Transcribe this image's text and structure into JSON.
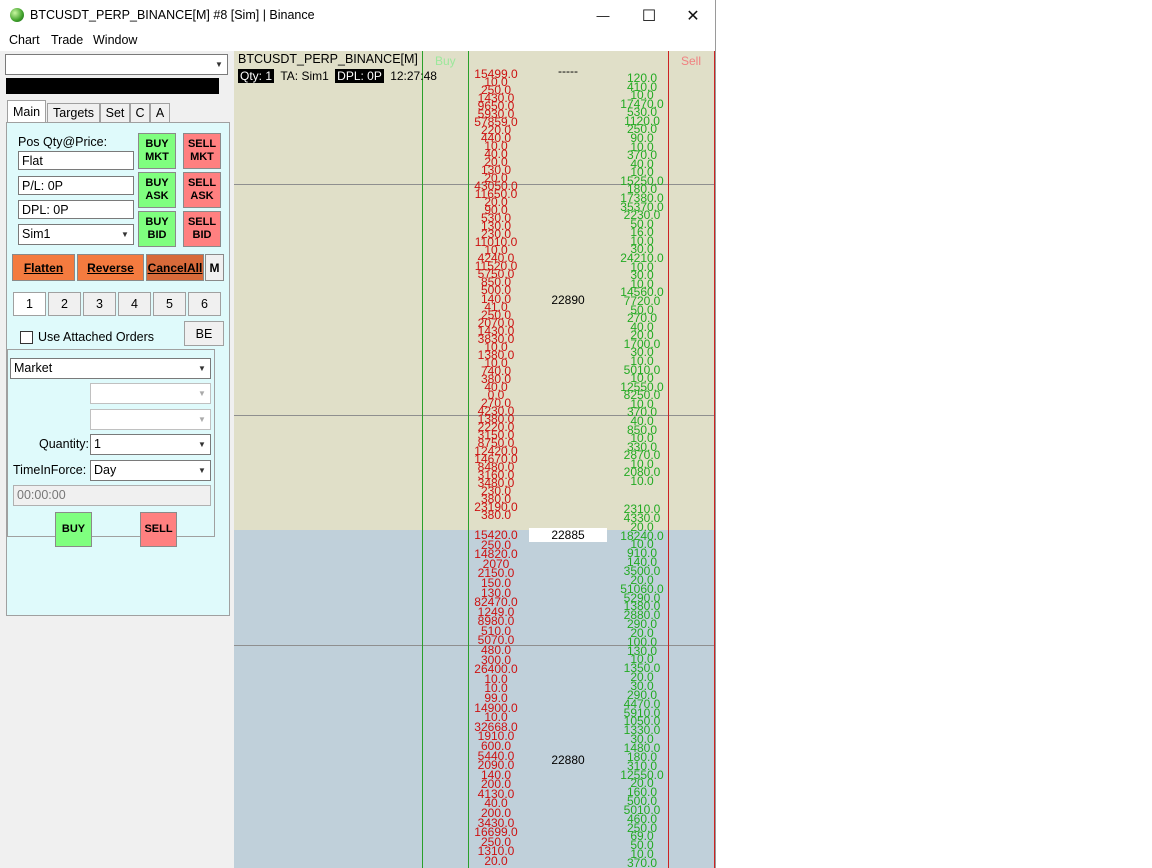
{
  "window": {
    "title": "BTCUSDT_PERP_BINANCE[M]  #8 [Sim]  | Binance",
    "min_glyph": "—",
    "max_glyph": "☐",
    "close_glyph": "✕"
  },
  "menu": [
    "Chart",
    "Trade",
    "Window"
  ],
  "tabs": [
    "Main",
    "Targets",
    "Set",
    "C",
    "A"
  ],
  "main": {
    "pos_label": "Pos Qty@Price:",
    "pos_value": "Flat",
    "pl_value": "P/L: 0P",
    "dpl_value": "DPL: 0P",
    "account": "Sim1",
    "buy_mkt": "BUY\nMKT",
    "sell_mkt": "SELL\nMKT",
    "buy_ask": "BUY\nASK",
    "sell_ask": "SELL\nASK",
    "buy_bid": "BUY\nBID",
    "sell_bid": "SELL\nBID",
    "flatten": "Flatten",
    "reverse": "Reverse",
    "cancel_all": "CancelAll",
    "m_button": "M",
    "qty_buttons": [
      "1",
      "2",
      "3",
      "4",
      "5",
      "6"
    ],
    "attached_label": "Use Attached Orders",
    "be_button": "BE",
    "order_type": "Market",
    "quantity_label": "Quantity:",
    "quantity_value": "1",
    "tif_label": "TimeInForce:",
    "tif_value": "Day",
    "time_value": "00:00:00",
    "buy_button": "BUY",
    "sell_button": "SELL"
  },
  "ladder": {
    "symbol": "BTCUSDT_PERP_BINANCE[M]",
    "qty_tag": "Qty: 1",
    "ta": "TA: Sim1",
    "dpl_tag": "DPL: 0P",
    "time": "12:27:48",
    "buy_header": "Buy",
    "sell_header": "Sell",
    "price_upper": "22890",
    "price_current": "22885",
    "price_lower": "22880",
    "dashes": "-----",
    "ask_upper": [
      "15499.0",
      "10.0",
      "250.0",
      "1430.0",
      "9650.0",
      "5930.0",
      "57859.0",
      "220.0",
      "440.0",
      "10.0",
      "40.0",
      "20.0",
      "130.0",
      "20.0",
      "43050.0",
      "11650.0",
      "20.0",
      "90.0",
      "530.0",
      "130.0",
      "230.0",
      "11010.0",
      "10.0",
      "4240.0",
      "11520.0",
      "5750.0",
      "850.0",
      "500.0",
      "140.0",
      "41.0",
      "250.0",
      "2070.0",
      "1430.0",
      "3830.0",
      "10.0",
      "1380.0",
      "10.0",
      "740.0",
      "380.0",
      "40.0",
      "0.0",
      "270.0",
      "4230.0",
      "1380.0",
      "2220.0",
      "3150.0",
      "8750.0",
      "12420.0",
      "14670.0",
      "8480.0",
      "3160.0",
      "3480.0",
      "230.0",
      "380.0",
      "23190.0",
      "380.0"
    ],
    "ask_lower": [
      "15420.0",
      "250.0",
      "14820.0",
      "2070",
      "2150.0",
      "150.0",
      "130.0",
      "82470.0",
      "1249.0",
      "8980.0",
      "510.0",
      "5070.0",
      "480.0",
      "300.0",
      "26400.0",
      "10.0",
      "10.0",
      "99.0",
      "14900.0",
      "10.0",
      "32668.0",
      "1910.0",
      "600.0",
      "5440.0",
      "2090.0",
      "140.0",
      "200.0",
      "4130.0",
      "40.0",
      "200.0",
      "3430.0",
      "16699.0",
      "250.0",
      "1310.0",
      "20.0"
    ],
    "bid_upper": [
      "120.0",
      "410.0",
      "10.0",
      "17470.0",
      "530.0",
      "1120.0",
      "250.0",
      "90.0",
      "10.0",
      "370.0",
      "40.0",
      "10.0",
      "15250.0",
      "180.0",
      "17380.0",
      "35370.0",
      "2230.0",
      "50.0",
      "16.0",
      "10.0",
      "30.0",
      "24210.0",
      "10.0",
      "30.0",
      "10.0",
      "14560.0",
      "7720.0",
      "50.0",
      "270.0",
      "40.0",
      "20.0",
      "1700.0",
      "30.0",
      "10.0",
      "5010.0",
      "10.0",
      "12550.0",
      "8250.0",
      "10.0",
      "370.0",
      "40.0",
      "850.0",
      "10.0",
      "330.0",
      "2870.0",
      "10.0",
      "2080.0",
      "10.0"
    ],
    "bid_lower": [
      "2310.0",
      "4330.0",
      "20.0",
      "18240.0",
      "10.0",
      "910.0",
      "140.0",
      "3500.0",
      "20.0",
      "51060.0",
      "5290.0",
      "1380.0",
      "2880.0",
      "290.0",
      "20.0",
      "100.0",
      "130.0",
      "10.0",
      "1350.0",
      "20.0",
      "30.0",
      "290.0",
      "4470.0",
      "5910.0",
      "1050.0",
      "1330.0",
      "30.0",
      "1480.0",
      "180.0",
      "310.0",
      "12550.0",
      "20.0",
      "160.0",
      "500.0",
      "5010.0",
      "460.0",
      "250.0",
      "69.0",
      "50.0",
      "10.0",
      "370.0"
    ]
  }
}
